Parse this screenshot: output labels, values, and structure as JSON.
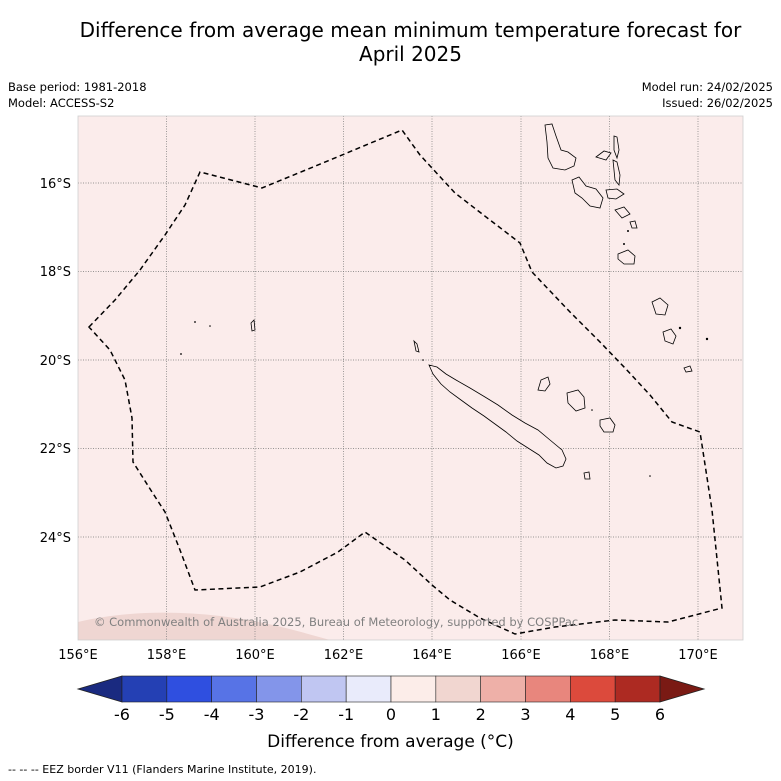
{
  "title_line1": "Difference from average mean minimum temperature forecast for",
  "title_line2": "April 2025",
  "base_period": "Base period: 1981-2018",
  "model": "Model: ACCESS-S2",
  "model_run": "Model run: 24/02/2025",
  "issued": "Issued: 26/02/2025",
  "copyright": "© Commonwealth of Australia 2025, Bureau of Meteorology, supported by COSPPac",
  "lon_ticks": [
    "156°E",
    "158°E",
    "160°E",
    "162°E",
    "164°E",
    "166°E",
    "168°E",
    "170°E"
  ],
  "lat_ticks": [
    "16°S",
    "18°S",
    "20°S",
    "22°S",
    "24°S"
  ],
  "colorbar": {
    "label": "Difference from average (°C)",
    "ticks": [
      "-6",
      "-5",
      "-4",
      "-3",
      "-2",
      "-1",
      "0",
      "1",
      "2",
      "3",
      "4",
      "5",
      "6"
    ],
    "colors": [
      "#1a2a80",
      "#2440b4",
      "#2f4fe0",
      "#5773e6",
      "#8395ea",
      "#c0c6f2",
      "#e9ebfb",
      "#fcede9",
      "#f1d6d0",
      "#eeb0a8",
      "#e8867d",
      "#dc4a3c",
      "#ad2a22",
      "#7a1a14"
    ]
  },
  "map": {
    "background_color": "#fbeceb",
    "lower_patch_color": "#efd6d2"
  },
  "footer": "--  --  -- EEZ border V11 (Flanders Marine Institute, 2019)."
}
